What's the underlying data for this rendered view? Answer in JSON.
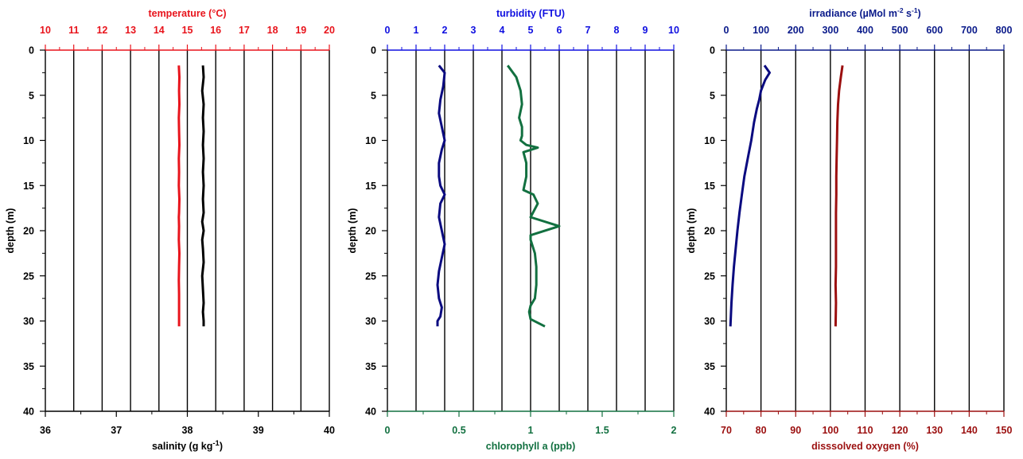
{
  "chart_data": [
    {
      "type": "line",
      "ylabel": "depth (m)",
      "ylim": [
        0,
        40
      ],
      "y_inverted": true,
      "y_ticks": [
        "0",
        "5",
        "10",
        "15",
        "20",
        "25",
        "30",
        "35",
        "40"
      ],
      "top_axis": {
        "label": "temperature (°C)",
        "color": "#e8141c",
        "range": [
          10,
          20
        ],
        "ticks": [
          "10",
          "11",
          "12",
          "13",
          "14",
          "15",
          "16",
          "17",
          "18",
          "19",
          "20"
        ]
      },
      "bottom_axis": {
        "label": "salinity (g kg-1)",
        "label_main": "salinity (g kg",
        "label_sup": "-1",
        "label_end": ")",
        "color": "#000000",
        "range": [
          36,
          40
        ],
        "ticks": [
          "36",
          "37",
          "38",
          "39",
          "40"
        ]
      },
      "grid": "vertical",
      "series": [
        {
          "axis": "top",
          "color": "#e8141c",
          "x": [
            14.7,
            14.72,
            14.71,
            14.72,
            14.7,
            14.71,
            14.72,
            14.7,
            14.71,
            14.7,
            14.72,
            14.71,
            14.7,
            14.71,
            14.7,
            14.72,
            14.71,
            14.7,
            14.71,
            14.71
          ],
          "y": [
            1.7,
            3,
            4.5,
            6,
            7.5,
            9,
            10.5,
            12,
            13.5,
            15,
            16.5,
            18,
            18.5,
            19.5,
            21,
            22.5,
            24,
            25.5,
            27,
            30.6
          ]
        },
        {
          "axis": "bottom",
          "color": "#000000",
          "x": [
            38.22,
            38.23,
            38.21,
            38.23,
            38.22,
            38.23,
            38.22,
            38.23,
            38.22,
            38.23,
            38.22,
            38.23,
            38.21,
            38.23,
            38.21,
            38.22,
            38.23,
            38.21,
            38.22,
            38.23,
            38.22,
            38.23,
            38.23
          ],
          "y": [
            1.7,
            3,
            4.5,
            6,
            7.5,
            9,
            10.5,
            12,
            13.5,
            15,
            16.5,
            18,
            19,
            20,
            21,
            22,
            23.5,
            25,
            26.5,
            28,
            29,
            30,
            30.6
          ]
        }
      ]
    },
    {
      "type": "line",
      "ylabel": "depth (m)",
      "ylim": [
        0,
        40
      ],
      "y_inverted": true,
      "y_ticks": [
        "0",
        "5",
        "10",
        "15",
        "20",
        "25",
        "30",
        "35",
        "40"
      ],
      "top_axis": {
        "label": "turbidity (FTU)",
        "color": "#1010e0",
        "range": [
          0,
          10
        ],
        "ticks": [
          "0",
          "1",
          "2",
          "3",
          "4",
          "5",
          "6",
          "7",
          "8",
          "9",
          "10"
        ]
      },
      "bottom_axis": {
        "label": "chlorophyll a (ppb)",
        "color": "#127040",
        "range": [
          0,
          2
        ],
        "ticks": [
          "0",
          "0.5",
          "1",
          "1.5",
          "2"
        ]
      },
      "grid": "vertical",
      "series": [
        {
          "axis": "top",
          "color": "#0a0a80",
          "x": [
            1.8,
            2.0,
            1.95,
            1.85,
            1.8,
            1.9,
            2.0,
            1.9,
            1.8,
            1.8,
            1.85,
            2.0,
            1.85,
            1.8,
            1.9,
            2.0,
            1.9,
            1.8,
            1.75,
            1.8,
            1.9,
            1.85,
            1.75,
            1.75
          ],
          "y": [
            1.7,
            2.5,
            4,
            5.5,
            7,
            8.5,
            10,
            11,
            12.5,
            14,
            15,
            16,
            17,
            18.5,
            20,
            21.5,
            23,
            24.5,
            26,
            27.5,
            28.5,
            29.5,
            30,
            30.6
          ]
        },
        {
          "axis": "bottom",
          "color": "#127040",
          "x": [
            0.84,
            0.9,
            0.93,
            0.94,
            0.92,
            0.94,
            0.94,
            0.93,
            0.97,
            1.05,
            0.95,
            0.97,
            0.97,
            0.95,
            1.02,
            1.05,
            1.0,
            1.2,
            1.0,
            1.0,
            1.03,
            1.04,
            1.04,
            1.03,
            1.0,
            0.99,
            1.0,
            1.1
          ],
          "y": [
            1.7,
            3,
            4.5,
            6,
            7.5,
            8.5,
            9.5,
            10,
            10.5,
            10.8,
            11.3,
            12.5,
            14,
            15.5,
            16,
            17,
            18.5,
            19.5,
            20.5,
            21,
            22.5,
            24,
            26,
            27.5,
            28.3,
            29,
            29.8,
            30.6
          ]
        }
      ]
    },
    {
      "type": "line",
      "ylabel": "depth (m)",
      "ylim": [
        0,
        40
      ],
      "y_inverted": true,
      "y_ticks": [
        "0",
        "5",
        "10",
        "15",
        "20",
        "25",
        "30",
        "35",
        "40"
      ],
      "top_axis": {
        "label": "irradiance (µMol m-2 s-1)",
        "label_main": "irradiance (µMol m",
        "label_sup": "-2",
        "label_mid": " s",
        "label_sup2": "-1",
        "label_end": ")",
        "color": "#0a1a8a",
        "range": [
          0,
          800
        ],
        "ticks": [
          "0",
          "100",
          "200",
          "300",
          "400",
          "500",
          "600",
          "700",
          "800"
        ]
      },
      "bottom_axis": {
        "label": "disssolved oxygen (%)",
        "color": "#9b0f0f",
        "range": [
          70,
          150
        ],
        "ticks": [
          "70",
          "80",
          "90",
          "100",
          "110",
          "120",
          "130",
          "140",
          "150"
        ]
      },
      "grid": "vertical",
      "series": [
        {
          "axis": "top",
          "color": "#0a0a80",
          "x": [
            110,
            125,
            112,
            100,
            95,
            88,
            80,
            72,
            62,
            52,
            45,
            38,
            32,
            27,
            22,
            18,
            15,
            12
          ],
          "y": [
            1.7,
            2.5,
            3.3,
            4.5,
            5.5,
            6.5,
            8,
            10,
            12,
            14,
            16,
            18,
            20,
            22,
            24,
            26,
            28,
            30.6
          ]
        },
        {
          "axis": "bottom",
          "color": "#9b0f0f",
          "x": [
            103.5,
            103.0,
            102.5,
            102.2,
            102.0,
            101.9,
            101.8,
            101.7,
            101.7,
            101.6,
            101.6,
            101.6,
            101.6,
            101.5,
            101.6,
            101.5
          ],
          "y": [
            1.7,
            3,
            4.5,
            6,
            8,
            10,
            12,
            14,
            16,
            18,
            20,
            22,
            24,
            26,
            28,
            30.6
          ]
        }
      ]
    }
  ]
}
